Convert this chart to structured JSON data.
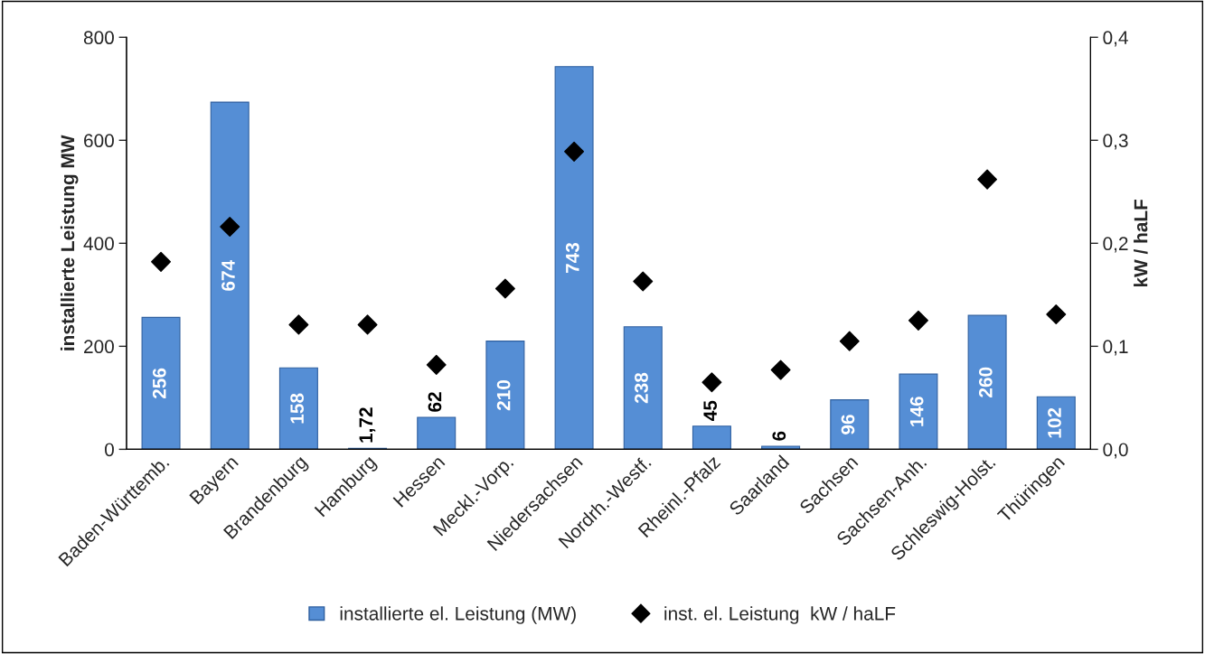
{
  "chart_data": {
    "type": "bar",
    "ylabel": "installierte Leistung MW",
    "y2label": "kW / haLF",
    "categories": [
      "Baden-Württemb.",
      "Bayern",
      "Brandenburg",
      "Hamburg",
      "Hessen",
      "Meckl.-Vorp.",
      "Niedersachsen",
      "Nordrh.-Westf.",
      "Rheinl.-Pfalz",
      "Saarland",
      "Sachsen",
      "Sachsen-Anh.",
      "Schleswig-Holst.",
      "Thüringen"
    ],
    "series": [
      {
        "name": "installierte el. Leistung (MW)",
        "color": "#558ed5",
        "values": [
          256,
          674,
          158,
          1.72,
          62,
          210,
          743,
          238,
          45,
          6,
          96,
          146,
          260,
          102
        ],
        "value_labels": [
          "256",
          "674",
          "158",
          "1,72",
          "62",
          "210",
          "743",
          "238",
          "45",
          "6",
          "96",
          "146",
          "260",
          "102"
        ]
      },
      {
        "name": "inst. el. Leistung  kW / haLF",
        "type": "scatter",
        "axis": "y2",
        "marker": "diamond",
        "color": "#000000",
        "values": [
          0.182,
          0.216,
          0.121,
          0.121,
          0.082,
          0.156,
          0.289,
          0.163,
          0.065,
          0.077,
          0.105,
          0.125,
          0.262,
          0.131
        ]
      }
    ],
    "ylim": [
      0,
      800
    ],
    "yticks": [
      0,
      200,
      400,
      600,
      800
    ],
    "y2lim": [
      0,
      0.4
    ],
    "y2ticks": [
      {
        "value": 0,
        "label": "0,0"
      },
      {
        "value": 0.1,
        "label": "0,1"
      },
      {
        "value": 0.2,
        "label": "0,2"
      },
      {
        "value": 0.3,
        "label": "0,3"
      },
      {
        "value": 0.4,
        "label": "0,4"
      }
    ],
    "legend": "bottom",
    "grid": false
  }
}
